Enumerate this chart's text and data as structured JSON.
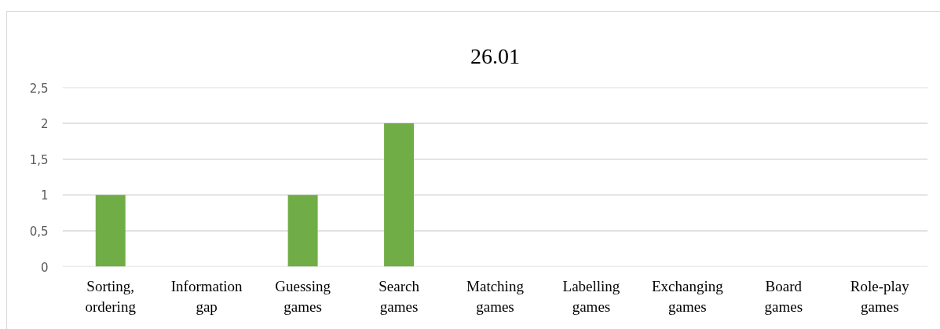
{
  "chart_data": {
    "type": "bar",
    "title": "26.01",
    "categories": [
      "Sorting, ordering",
      "Information gap",
      "Guessing games",
      "Search games",
      "Matching games",
      "Labelling games",
      "Exchanging games",
      "Board games",
      "Role-play games"
    ],
    "values": [
      1,
      0,
      1,
      2,
      0,
      0,
      0,
      0,
      0
    ],
    "color": "#70ad47",
    "ylim": [
      0,
      2.5
    ],
    "yticks": [
      0,
      {
        "value": 0.5,
        "label": "0,5"
      },
      1,
      {
        "value": 1.5,
        "label": "1,5"
      },
      2,
      {
        "value": 2.5,
        "label": "2,5"
      }
    ],
    "grid": "y"
  }
}
